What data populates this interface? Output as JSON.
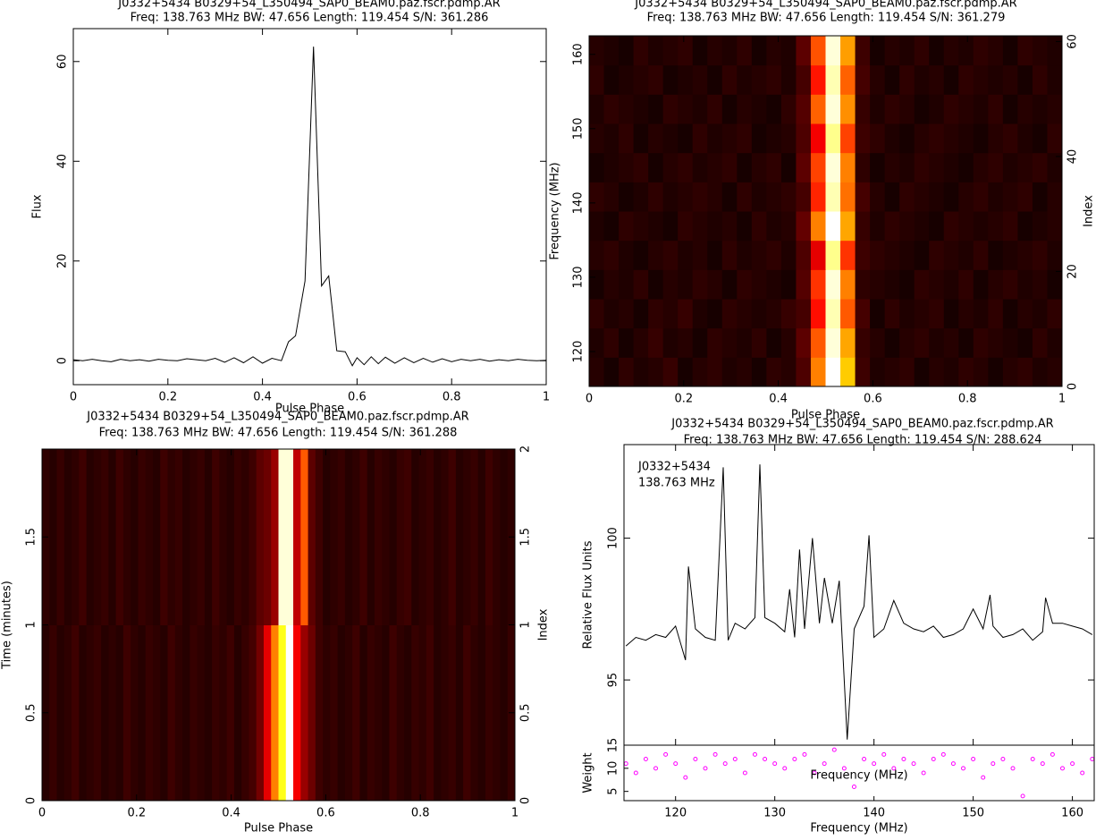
{
  "chart_data": [
    {
      "type": "line",
      "title": "J0332+5434  B0329+54_L350494_SAP0_BEAM0.paz.fscr.pdmp.AR",
      "subtitle": "Freq: 138.763 MHz BW: 47.656 Length: 119.454 S/N: 361.286",
      "xlabel": "Pulse Phase",
      "ylabel": "Flux",
      "color": "#000000",
      "x": [
        0,
        0.02,
        0.04,
        0.06,
        0.08,
        0.1,
        0.12,
        0.14,
        0.16,
        0.18,
        0.2,
        0.22,
        0.24,
        0.26,
        0.28,
        0.3,
        0.32,
        0.34,
        0.36,
        0.38,
        0.4,
        0.42,
        0.44,
        0.455,
        0.47,
        0.49,
        0.508,
        0.525,
        0.54,
        0.557,
        0.575,
        0.59,
        0.6,
        0.615,
        0.63,
        0.645,
        0.66,
        0.68,
        0.7,
        0.72,
        0.74,
        0.76,
        0.78,
        0.8,
        0.82,
        0.84,
        0.86,
        0.88,
        0.9,
        0.92,
        0.94,
        0.96,
        0.98,
        1
      ],
      "values": [
        0.2,
        0,
        0.3,
        0,
        -0.2,
        0.3,
        0,
        0.2,
        -0.1,
        0.3,
        0.1,
        0,
        0.4,
        0.2,
        0,
        0.5,
        -0.3,
        0.6,
        -0.4,
        0.8,
        -0.5,
        0.5,
        0,
        3.8,
        5,
        16,
        63,
        15,
        17,
        2,
        1.8,
        -1,
        0.6,
        -0.8,
        0.8,
        -0.6,
        0.7,
        -0.5,
        0.6,
        -0.4,
        0.5,
        -0.3,
        0.4,
        -0.2,
        0.3,
        0,
        0.3,
        -0.1,
        0.2,
        0,
        0.3,
        0.1,
        0,
        0.1
      ],
      "xlim": [
        0,
        1
      ],
      "xticks": [
        0,
        0.2,
        0.4,
        0.6,
        0.8,
        1
      ],
      "ylim": [
        -4.8,
        66.6
      ],
      "yticks": [
        0,
        20,
        40,
        60
      ]
    },
    {
      "type": "heatmap",
      "colormap": "heat",
      "title": "J0332+5434  B0329+54_L350494_SAP0_BEAM0.paz.fscr.pdmp.AR",
      "subtitle": "Freq: 138.763 MHz BW: 47.656 Length: 119.454 S/N: 361.279",
      "xlabel": "Pulse Phase",
      "ylabel": "Frequency (MHz)",
      "y2label": "Index",
      "xlim": [
        0,
        1
      ],
      "xticks": [
        0,
        0.2,
        0.4,
        0.6,
        0.8,
        1
      ],
      "ylim": [
        115.3,
        162.5
      ],
      "yticks": [
        120,
        130,
        140,
        150,
        160
      ],
      "y2lim": [
        0,
        61
      ],
      "y2ticks": [
        0,
        20,
        40,
        60
      ],
      "z": [
        [
          0.5,
          0.3,
          0.6,
          0.4,
          0.5,
          0.7,
          0.3,
          0.5,
          0.6,
          0.4,
          0.5,
          0.3,
          0.6,
          0.5,
          1,
          5,
          10,
          6,
          0.8,
          0.4,
          0.5,
          0.6,
          0.3,
          0.5,
          0.4,
          0.6,
          0.5,
          0.3,
          0.5,
          0.6,
          0.4,
          0.5
        ],
        [
          0.4,
          0.6,
          0.3,
          0.5,
          0.7,
          0.4,
          0.5,
          0.3,
          0.6,
          0.5,
          0.4,
          0.6,
          0.3,
          0.5,
          1.2,
          4.5,
          9.5,
          5.5,
          0.7,
          0.5,
          0.3,
          0.5,
          0.6,
          0.4,
          0.5,
          0.3,
          0.6,
          0.5,
          0.4,
          0.3,
          0.6,
          0.4
        ],
        [
          0.6,
          0.4,
          0.5,
          0.3,
          0.6,
          0.5,
          0.7,
          0.4,
          0.3,
          0.6,
          0.5,
          0.4,
          0.5,
          0.7,
          0.9,
          3.5,
          9,
          4.5,
          0.9,
          0.3,
          0.6,
          0.4,
          0.5,
          0.6,
          0.3,
          0.5,
          0.4,
          0.6,
          0.3,
          0.5,
          0.4,
          0.6
        ],
        [
          0.3,
          0.5,
          0.4,
          0.6,
          0.3,
          0.5,
          0.4,
          0.6,
          0.5,
          0.3,
          0.6,
          0.5,
          0.4,
          0.3,
          1.1,
          4,
          9.5,
          5,
          0.6,
          0.5,
          0.4,
          0.3,
          0.6,
          0.5,
          0.4,
          0.6,
          0.3,
          0.5,
          0.6,
          0.4,
          0.5,
          0.3
        ],
        [
          0.5,
          0.6,
          0.4,
          0.3,
          0.5,
          0.6,
          0.4,
          0.5,
          0.3,
          0.6,
          0.4,
          0.5,
          0.6,
          0.4,
          1,
          3,
          8.5,
          4,
          0.8,
          0.6,
          0.5,
          0.4,
          0.3,
          0.6,
          0.5,
          0.4,
          0.6,
          0.3,
          0.4,
          0.5,
          0.6,
          0.4
        ],
        [
          0.4,
          0.3,
          0.6,
          0.5,
          0.4,
          0.3,
          0.6,
          0.5,
          0.4,
          0.5,
          0.3,
          0.6,
          0.4,
          0.5,
          1.3,
          5,
          10,
          5.5,
          0.7,
          0.4,
          0.6,
          0.5,
          0.4,
          0.3,
          0.6,
          0.5,
          0.4,
          0.5,
          0.6,
          0.3,
          0.4,
          0.5
        ],
        [
          0.6,
          0.5,
          0.3,
          0.4,
          0.6,
          0.4,
          0.5,
          0.6,
          0.5,
          0.3,
          0.6,
          0.4,
          0.5,
          0.6,
          0.9,
          3.8,
          9,
          4.8,
          0.9,
          0.5,
          0.3,
          0.6,
          0.5,
          0.4,
          0.3,
          0.5,
          0.6,
          0.4,
          0.5,
          0.6,
          0.3,
          0.5
        ],
        [
          0.3,
          0.4,
          0.5,
          0.6,
          0.3,
          0.5,
          0.6,
          0.4,
          0.5,
          0.6,
          0.3,
          0.5,
          0.6,
          0.3,
          1.2,
          4.2,
          9.5,
          5,
          0.6,
          0.3,
          0.5,
          0.4,
          0.6,
          0.5,
          0.4,
          0.3,
          0.5,
          0.6,
          0.4,
          0.5,
          0.6,
          0.4
        ],
        [
          0.5,
          0.4,
          0.6,
          0.3,
          0.5,
          0.4,
          0.3,
          0.6,
          0.4,
          0.5,
          0.6,
          0.3,
          0.4,
          0.5,
          1,
          3.2,
          8.5,
          4.2,
          0.8,
          0.6,
          0.4,
          0.3,
          0.5,
          0.6,
          0.5,
          0.4,
          0.3,
          0.5,
          0.6,
          0.4,
          0.3,
          0.6
        ],
        [
          0.4,
          0.6,
          0.5,
          0.4,
          0.3,
          0.6,
          0.5,
          0.4,
          0.6,
          0.3,
          0.5,
          0.4,
          0.3,
          0.6,
          1.1,
          4.6,
          9.5,
          5.2,
          0.7,
          0.4,
          0.6,
          0.5,
          0.3,
          0.4,
          0.6,
          0.5,
          0.4,
          0.6,
          0.3,
          0.5,
          0.4,
          0.5
        ],
        [
          0.6,
          0.3,
          0.4,
          0.5,
          0.6,
          0.3,
          0.4,
          0.5,
          0.3,
          0.6,
          0.4,
          0.5,
          0.6,
          0.4,
          0.9,
          3.6,
          9,
          4.6,
          0.9,
          0.5,
          0.3,
          0.6,
          0.4,
          0.5,
          0.3,
          0.6,
          0.5,
          0.4,
          0.5,
          0.3,
          0.6,
          0.4
        ],
        [
          0.5,
          0.4,
          0.3,
          0.6,
          0.4,
          0.5,
          0.6,
          0.3,
          0.5,
          0.4,
          0.6,
          0.3,
          0.5,
          0.4,
          1.2,
          4.4,
          9.5,
          5.4,
          0.8,
          0.3,
          0.5,
          0.4,
          0.6,
          0.3,
          0.5,
          0.4,
          0.6,
          0.5,
          0.3,
          0.6,
          0.5,
          0.4
        ]
      ]
    },
    {
      "type": "heatmap",
      "colormap": "heat",
      "title": "J0332+5434  B0329+54_L350494_SAP0_BEAM0.paz.fscr.pdmp.AR",
      "subtitle": "Freq: 138.763 MHz BW: 47.656 Length: 119.454 S/N: 361.288",
      "xlabel": "Pulse Phase",
      "ylabel": "Time (minutes)",
      "y2label": "Index",
      "xlim": [
        0,
        1
      ],
      "xticks": [
        0,
        0.2,
        0.4,
        0.6,
        0.8,
        1
      ],
      "ylim": [
        0,
        2
      ],
      "yticks": [
        0,
        0.5,
        1,
        1.5
      ],
      "y2lim": [
        0,
        2
      ],
      "y2ticks": [
        0,
        0.5,
        1,
        1.5,
        2
      ],
      "z": [
        [
          0.5,
          0.7,
          0.5,
          0.6,
          0.8,
          0.5,
          0.6,
          0.7,
          0.5,
          0.6,
          0.5,
          0.8,
          0.6,
          0.5,
          0.7,
          0.6,
          0.5,
          0.8,
          0.6,
          0.5,
          0.7,
          0.6,
          0.5,
          0.7,
          0.6,
          0.8,
          0.5,
          0.7,
          0.9,
          1.5,
          3,
          5,
          7,
          10,
          3.2,
          2,
          1.4,
          0.8,
          0.6,
          0.7,
          0.5,
          0.6,
          0.8,
          0.5,
          0.7,
          0.6,
          0.5,
          0.8,
          0.6,
          0.5,
          0.7,
          0.6,
          0.8,
          0.5,
          0.6,
          0.7,
          0.5,
          0.8,
          0.6,
          0.5,
          0.7,
          0.6,
          0.5,
          0.7
        ],
        [
          0.6,
          0.5,
          0.7,
          0.5,
          0.6,
          0.8,
          0.5,
          0.6,
          0.7,
          0.5,
          0.8,
          0.6,
          0.5,
          0.7,
          0.6,
          0.5,
          0.8,
          0.6,
          0.7,
          0.5,
          0.6,
          0.7,
          0.5,
          0.8,
          0.6,
          0.5,
          0.7,
          0.6,
          0.8,
          1.2,
          1.4,
          2,
          9.5,
          9.5,
          2.5,
          4.5,
          1.2,
          0.8,
          0.5,
          0.6,
          0.7,
          0.5,
          0.6,
          0.8,
          0.5,
          0.7,
          0.6,
          0.5,
          0.7,
          0.8,
          0.5,
          0.6,
          0.7,
          0.5,
          0.6,
          0.8,
          0.5,
          0.6,
          0.7,
          0.5,
          0.8,
          0.6,
          0.5,
          0.6
        ]
      ]
    },
    {
      "type": "line",
      "title": "J0332+5434  B0329+54_L350494_SAP0_BEAM0.paz.fscr.pdmp.AR",
      "subtitle": "Freq: 138.763 MHz BW: 47.656 Length: 119.454 S/N: 288.624",
      "xlabel": "Frequency (MHz)",
      "ylabel": "Relative Flux Units",
      "color": "#000000",
      "annotations": [
        "J0332+5434",
        "138.763 MHz"
      ],
      "x": [
        115,
        116,
        117,
        118,
        119,
        120,
        121,
        121.3,
        122,
        123,
        124,
        124.8,
        125.3,
        126,
        127,
        128,
        128.5,
        129,
        130,
        131,
        131.5,
        132,
        132.5,
        133,
        133.8,
        134.5,
        135,
        135.8,
        136.5,
        137.3,
        138,
        139,
        139.5,
        140,
        141,
        142,
        143,
        144,
        145,
        146,
        147,
        148,
        149,
        150,
        151,
        151.7,
        152,
        153,
        154,
        155,
        156,
        157,
        157.3,
        158,
        159,
        160,
        161,
        162
      ],
      "values": [
        96.2,
        96.5,
        96.4,
        96.6,
        96.5,
        96.9,
        95.7,
        99.0,
        96.8,
        96.5,
        96.4,
        102.5,
        96.4,
        97.0,
        96.8,
        97.2,
        102.6,
        97.2,
        97.0,
        96.7,
        98.2,
        96.5,
        99.6,
        96.8,
        100.0,
        97.0,
        98.6,
        97.0,
        98.5,
        92.9,
        96.8,
        97.6,
        100.1,
        96.5,
        96.8,
        97.8,
        97.0,
        96.8,
        96.7,
        96.9,
        96.5,
        96.6,
        96.8,
        97.5,
        96.8,
        98.0,
        96.9,
        96.5,
        96.6,
        96.8,
        96.4,
        96.7,
        97.9,
        97.0,
        97.0,
        96.9,
        96.8,
        96.6
      ],
      "xlim": [
        114.8,
        162.2
      ],
      "xticks": [
        120,
        130,
        140,
        150,
        160
      ],
      "ylim": [
        92.7,
        103.3
      ],
      "yticks": [
        95,
        100
      ],
      "weights": {
        "type": "scatter",
        "ylabel": "Weight",
        "xlabel": "Frequency (MHz)",
        "color": "#ff00ff",
        "x": [
          115,
          116,
          117,
          118,
          119,
          120,
          121,
          122,
          123,
          124,
          125,
          126,
          127,
          128,
          129,
          130,
          131,
          132,
          133,
          134,
          135,
          136,
          137,
          138,
          139,
          140,
          141,
          142,
          143,
          144,
          145,
          146,
          147,
          148,
          149,
          150,
          151,
          152,
          153,
          154,
          155,
          156,
          157,
          158,
          159,
          160,
          161,
          162
        ],
        "values": [
          11,
          9,
          12,
          10,
          13,
          11,
          8,
          12,
          10,
          13,
          11,
          12,
          9,
          13,
          12,
          11,
          10,
          12,
          13,
          9,
          11,
          14,
          10,
          6,
          12,
          11,
          13,
          10,
          12,
          11,
          9,
          12,
          13,
          11,
          10,
          12,
          8,
          11,
          12,
          10,
          4,
          12,
          11,
          13,
          10,
          11,
          9,
          12
        ],
        "ylim": [
          3,
          15
        ],
        "yticks": [
          5,
          10,
          15
        ]
      }
    }
  ]
}
